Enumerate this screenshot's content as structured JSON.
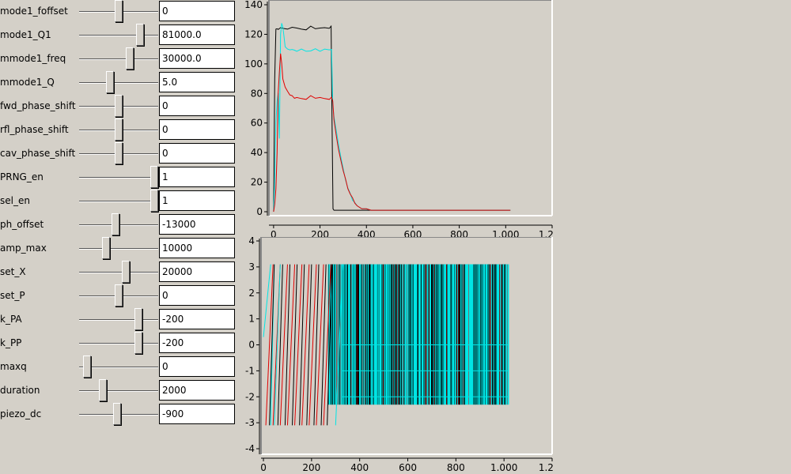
{
  "controls": [
    {
      "label": "mode1_foffset",
      "value": "0",
      "level": 0.5
    },
    {
      "label": "mode1_Q1",
      "value": "81000.0",
      "level": 0.8
    },
    {
      "label": "mmode1_freq",
      "value": "30000.0",
      "level": 0.65
    },
    {
      "label": "mmode1_Q",
      "value": "5.0",
      "level": 0.38
    },
    {
      "label": "fwd_phase_shift",
      "value": "0",
      "level": 0.5
    },
    {
      "label": "rfl_phase_shift",
      "value": "0",
      "level": 0.5
    },
    {
      "label": "cav_phase_shift",
      "value": "0",
      "level": 0.5
    },
    {
      "label": "PRNG_en",
      "value": "1",
      "level": 1.0
    },
    {
      "label": "sel_en",
      "value": "1",
      "level": 1.0
    },
    {
      "label": "ph_offset",
      "value": "-13000",
      "level": 0.45
    },
    {
      "label": "amp_max",
      "value": "10000",
      "level": 0.32
    },
    {
      "label": "set_X",
      "value": "20000",
      "level": 0.6
    },
    {
      "label": "set_P",
      "value": "0",
      "level": 0.5
    },
    {
      "label": "k_PA",
      "value": "-200",
      "level": 0.78
    },
    {
      "label": "k_PP",
      "value": "-200",
      "level": 0.78
    },
    {
      "label": "maxq",
      "value": "0",
      "level": 0.05
    },
    {
      "label": "duration",
      "value": "2000",
      "level": 0.28
    },
    {
      "label": "piezo_dc",
      "value": "-900",
      "level": 0.48
    }
  ],
  "chart_data": [
    {
      "type": "line",
      "x_ticks": [
        "0",
        "200",
        "400",
        "600",
        "800",
        "1.000",
        "1.200"
      ],
      "y_ticks": [
        "0",
        "20",
        "40",
        "60",
        "80",
        "100",
        "120",
        "140"
      ],
      "xlim": [
        -20,
        1200
      ],
      "ylim": [
        0,
        140
      ],
      "colors": {
        "black": "#000000",
        "cyan": "#00e5e5",
        "red": "#e00000"
      },
      "series": [
        {
          "color": "#000000",
          "x": [
            0,
            5,
            10,
            15,
            20,
            30,
            40,
            60,
            80,
            100,
            120,
            140,
            160,
            180,
            200,
            220,
            240,
            248,
            252,
            256,
            260,
            270,
            280,
            300,
            340,
            400,
            500,
            600,
            700,
            800,
            900,
            1000,
            1020
          ],
          "y": [
            0,
            90,
            123,
            124,
            123,
            125,
            124,
            123,
            125,
            124,
            124,
            123,
            125,
            124,
            124,
            125,
            124,
            125,
            60,
            2,
            1,
            1,
            1,
            1,
            1,
            1,
            1,
            1,
            1,
            1,
            1,
            1,
            1
          ]
        },
        {
          "color": "#00e5e5",
          "x": [
            0,
            5,
            10,
            15,
            20,
            25,
            30,
            35,
            40,
            45,
            50,
            60,
            70,
            80,
            90,
            100,
            120,
            140,
            160,
            180,
            200,
            220,
            240,
            250,
            255,
            260,
            270,
            280,
            290,
            300,
            310,
            320,
            330,
            340,
            350,
            360,
            380,
            400,
            420,
            450,
            500,
            600,
            700,
            800,
            900,
            1000,
            1020
          ],
          "y": [
            0,
            20,
            60,
            75,
            80,
            50,
            120,
            127,
            125,
            118,
            112,
            110,
            109,
            110,
            109,
            109,
            110,
            108,
            109,
            110,
            109,
            110,
            109,
            110,
            72,
            65,
            55,
            45,
            37,
            29,
            22,
            16,
            12,
            8,
            6,
            4,
            2,
            2,
            1,
            1,
            1,
            1,
            1,
            1,
            1,
            1,
            1
          ]
        },
        {
          "color": "#e00000",
          "x": [
            0,
            5,
            10,
            15,
            20,
            25,
            30,
            35,
            40,
            50,
            60,
            70,
            80,
            90,
            100,
            120,
            140,
            160,
            180,
            200,
            220,
            240,
            250,
            255,
            260,
            270,
            280,
            290,
            300,
            310,
            320,
            330,
            340,
            350,
            360,
            380,
            400,
            420,
            450,
            500,
            600,
            700,
            800,
            900,
            1000,
            1020
          ],
          "y": [
            0,
            5,
            15,
            40,
            80,
            95,
            107,
            100,
            90,
            84,
            82,
            79,
            78,
            77,
            77,
            77,
            76,
            78,
            77,
            77,
            77,
            76,
            77,
            75,
            62,
            52,
            42,
            34,
            28,
            22,
            16,
            12,
            9,
            6,
            4,
            2,
            2,
            1,
            1,
            1,
            1,
            1,
            1,
            1,
            1,
            1
          ]
        }
      ]
    },
    {
      "type": "line",
      "x_ticks": [
        "0",
        "200",
        "400",
        "600",
        "800",
        "1.000",
        "1.200"
      ],
      "y_ticks": [
        "-4",
        "-3",
        "-2",
        "-1",
        "0",
        "1",
        "2",
        "3",
        "4"
      ],
      "xlim": [
        -10,
        1200
      ],
      "ylim": [
        -4,
        4
      ],
      "noise_band": {
        "x_start": 270,
        "x_end": 1020,
        "y_min": -2.3,
        "y_max": 3.1,
        "mid_levels": [
          0,
          -1,
          -2
        ]
      },
      "series": [
        {
          "color": "#e00000",
          "ramps": [
            [
              10,
              -3.1,
              40,
              3.1
            ],
            [
              40,
              -3.1,
              70,
              3.1
            ],
            [
              70,
              -3.1,
              100,
              3.1
            ],
            [
              100,
              -3.1,
              130,
              3.1
            ],
            [
              130,
              -3.1,
              160,
              3.1
            ],
            [
              160,
              -3.1,
              190,
              3.1
            ],
            [
              190,
              -3.1,
              220,
              3.1
            ],
            [
              220,
              -3.1,
              250,
              3.1
            ],
            [
              250,
              -3.1,
              280,
              3.1
            ]
          ]
        },
        {
          "color": "#00e5e5",
          "ramps": [
            [
              0,
              0.3,
              30,
              3.1
            ],
            [
              30,
              -3.1,
              45,
              3.1
            ],
            [
              45,
              -3.1,
              70,
              3.1
            ],
            [
              300,
              -3.1,
              330,
              3.1
            ]
          ]
        },
        {
          "color": "#000000",
          "ramps": [
            [
              25,
              -3.1,
              45,
              3.1
            ],
            [
              60,
              -3.1,
              80,
              3.1
            ],
            [
              90,
              -3.1,
              110,
              3.1
            ],
            [
              120,
              -3.1,
              140,
              3.1
            ],
            [
              150,
              -3.1,
              170,
              3.1
            ],
            [
              180,
              -3.1,
              200,
              3.1
            ],
            [
              210,
              -3.1,
              230,
              3.1
            ],
            [
              240,
              -3.1,
              260,
              3.1
            ],
            [
              265,
              -3.1,
              285,
              3.1
            ]
          ]
        }
      ]
    }
  ]
}
